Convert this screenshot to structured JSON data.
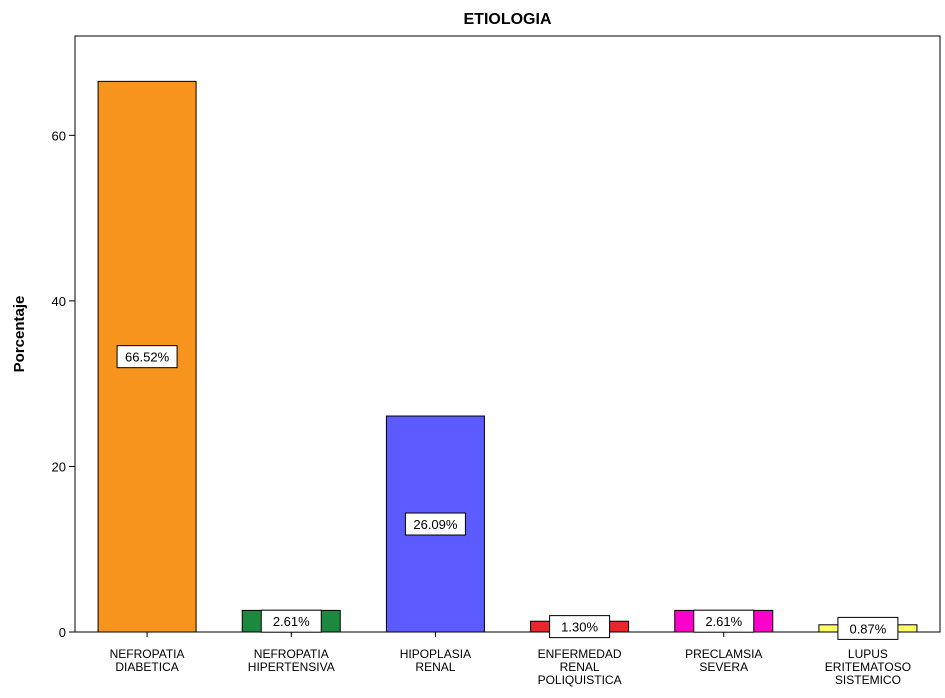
{
  "chart_data": {
    "type": "bar",
    "title": "ETIOLOGIA",
    "ylabel": "Porcentaje",
    "xlabel": "",
    "ylim": [
      0,
      72
    ],
    "yticks": [
      0,
      20,
      40,
      60
    ],
    "grid": false,
    "categories": [
      [
        "NEFROPATIA",
        "DIABETICA"
      ],
      [
        "NEFROPATIA",
        "HIPERTENSIVA"
      ],
      [
        "HIPOPLASIA",
        "RENAL"
      ],
      [
        "ENFERMEDAD",
        "RENAL",
        "POLIQUISTICA"
      ],
      [
        "PRECLAMSIA",
        "SEVERA"
      ],
      [
        "LUPUS",
        "ERITEMATOSO",
        "SISTEMICO"
      ]
    ],
    "values": [
      66.52,
      2.61,
      26.09,
      1.3,
      2.61,
      0.87
    ],
    "data_labels": [
      "66.52%",
      "2.61%",
      "26.09%",
      "1.30%",
      "2.61%",
      "0.87%"
    ],
    "colors": [
      "#f7941d",
      "#1b8a3e",
      "#5b5bff",
      "#e8262b",
      "#ff00cc",
      "#ffff66"
    ]
  }
}
